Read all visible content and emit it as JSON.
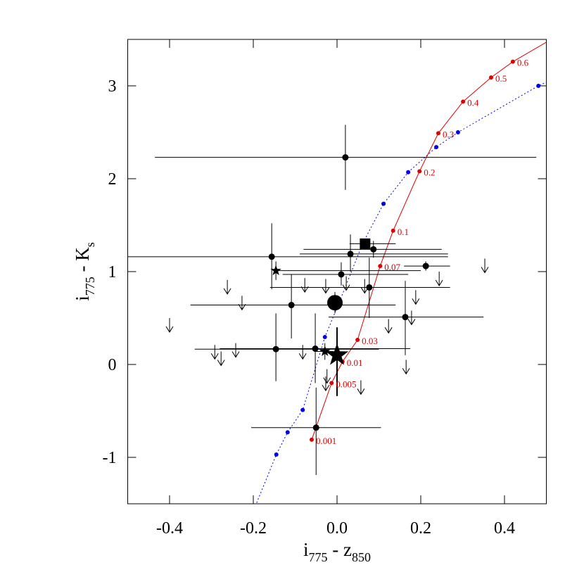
{
  "chart_data": {
    "type": "scatter",
    "xlabel": [
      "i",
      "775",
      " - z",
      "850"
    ],
    "ylabel": [
      "i",
      "775",
      " - K",
      "s"
    ],
    "xlim": [
      -0.5,
      0.5
    ],
    "ylim": [
      -1.5,
      3.5
    ],
    "xticks": [
      -0.4,
      -0.2,
      {
        "value": 0,
        "label": "0.0"
      },
      0.2,
      0.4
    ],
    "yticks": [
      -1,
      0,
      1,
      2,
      3
    ],
    "tracks": [
      {
        "color": "#e00000",
        "style": "solid",
        "x": [
          -0.0605,
          -0.013,
          0.013,
          0.049,
          0.103,
          0.134,
          0.197,
          0.242,
          0.301,
          0.368,
          0.42,
          0.5
        ],
        "y": [
          -0.81,
          -0.2,
          0.03,
          0.265,
          1.06,
          1.44,
          2.08,
          2.49,
          2.83,
          3.09,
          3.26,
          3.47
        ],
        "dots_x": [
          -0.0605,
          -0.013,
          0.013,
          0.049,
          0.103,
          0.134,
          0.197,
          0.242,
          0.301,
          0.368,
          0.42
        ],
        "dots_y": [
          -0.81,
          -0.2,
          0.03,
          0.265,
          1.06,
          1.44,
          2.08,
          2.49,
          2.83,
          3.09,
          3.26
        ],
        "labels": [
          "0.001",
          "0.005",
          "0.01",
          "0.03",
          "0.07",
          "0.1",
          "0.2",
          "0.3",
          "0.4",
          "0.5",
          "0.6"
        ]
      },
      {
        "color": "#0000ee",
        "style": "dotted",
        "x": [
          -0.192,
          -0.145,
          -0.118,
          -0.082,
          -0.029,
          0.005,
          0.062,
          0.111,
          0.17,
          0.237,
          0.289,
          0.481,
          0.5
        ],
        "y": [
          -1.49,
          -0.97,
          -0.73,
          -0.49,
          0.295,
          0.667,
          1.31,
          1.73,
          2.07,
          2.34,
          2.5,
          3.0,
          3.04
        ],
        "dots_x": [
          -0.145,
          -0.118,
          -0.082,
          -0.029,
          0.005,
          0.062,
          0.111,
          0.17,
          0.237,
          0.289,
          0.481
        ],
        "dots_y": [
          -0.97,
          -0.73,
          -0.49,
          0.295,
          0.667,
          1.31,
          1.73,
          2.07,
          2.34,
          2.5,
          3.0
        ]
      }
    ],
    "points": [
      {
        "marker": "circle",
        "x": 0.02,
        "y": 2.23,
        "xlo": -0.435,
        "xhi": 0.476,
        "ylo": 1.88,
        "yhi": 2.58
      },
      {
        "marker": "circle",
        "x": -0.156,
        "y": 1.16,
        "xlo": -0.5,
        "xhi": 0.265,
        "ylo": 0.81,
        "yhi": 1.52
      },
      {
        "marker": "circle",
        "x": 0.032,
        "y": 1.19,
        "xlo": -0.089,
        "xhi": 0.265,
        "ylo": 1.0,
        "yhi": 1.4
      },
      {
        "marker": "circle",
        "x": 0.087,
        "y": 1.24,
        "xlo": -0.08,
        "xhi": 0.25,
        "ylo": 1.15,
        "yhi": 1.33
      },
      {
        "marker": "square",
        "x": 0.067,
        "y": 1.3,
        "xlo": 0.03,
        "xhi": 0.14,
        "ylo": 1.25,
        "yhi": 1.35
      },
      {
        "marker": "circle",
        "x": 0.01,
        "y": 0.97,
        "xlo": -0.13,
        "xhi": 0.17,
        "ylo": 0.85,
        "yhi": 1.1
      },
      {
        "marker": "circle",
        "x": 0.212,
        "y": 1.06,
        "xlo": 0.16,
        "xhi": 0.27,
        "ylo": 1.01,
        "yhi": 1.11
      },
      {
        "marker": "circle",
        "x": 0.077,
        "y": 0.83,
        "xlo": -0.16,
        "xhi": 0.27,
        "ylo": 0.5,
        "yhi": 1.15
      },
      {
        "marker": "circle",
        "x": -0.109,
        "y": 0.64,
        "xlo": -0.35,
        "xhi": 0.14,
        "ylo": 0.28,
        "yhi": 0.97
      },
      {
        "marker": "circle",
        "x": 0.163,
        "y": 0.51,
        "xlo": -0.02,
        "xhi": 0.35,
        "ylo": 0.1,
        "yhi": 0.9
      },
      {
        "marker": "circle",
        "x": -0.146,
        "y": 0.165,
        "xlo": -0.34,
        "xhi": 0.1,
        "ylo": -0.18,
        "yhi": 0.55
      },
      {
        "marker": "circle",
        "x": -0.052,
        "y": 0.17,
        "xlo": -0.28,
        "xhi": 0.175,
        "ylo": -0.2,
        "yhi": 0.55
      },
      {
        "marker": "circle",
        "x": -0.05,
        "y": -0.68,
        "xlo": -0.205,
        "xhi": 0.105,
        "ylo": -1.19,
        "yhi": -0.25
      },
      {
        "marker": "big-circle",
        "x": -0.005,
        "y": 0.665,
        "xlo": -0.015,
        "xhi": 0.005,
        "ylo": 0.55,
        "yhi": 0.78
      },
      {
        "marker": "star",
        "x": -0.146,
        "y": 1.01,
        "xlo": -0.146,
        "xhi": 0.2,
        "ylo": 0.91,
        "yhi": 1.11
      },
      {
        "marker": "star",
        "x": -0.029,
        "y": 0.14,
        "xlo": -0.05,
        "xhi": -0.01,
        "ylo": 0.05,
        "yhi": 0.23
      },
      {
        "marker": "big-star",
        "x": 0.0,
        "y": 0.1,
        "xlo": -0.01,
        "xhi": 0.01,
        "ylo": -0.34,
        "yhi": 0.4
      }
    ],
    "limits": {
      "x": [
        -0.4,
        -0.262,
        -0.227,
        -0.077,
        -0.027,
        0.022,
        0.066,
        0.244,
        0.353,
        0.188,
        0.178,
        0.123,
        -0.292,
        -0.277,
        -0.242,
        -0.082,
        -0.024,
        -0.027,
        0.057,
        0.165
      ],
      "y": [
        0.5,
        0.91,
        0.74,
        0.93,
        0.92,
        0.95,
        0.92,
        1.0,
        1.14,
        0.8,
        0.58,
        0.49,
        0.21,
        0.14,
        0.23,
        0.21,
        -0.05,
        -0.13,
        -0.17,
        0.05
      ]
    }
  }
}
